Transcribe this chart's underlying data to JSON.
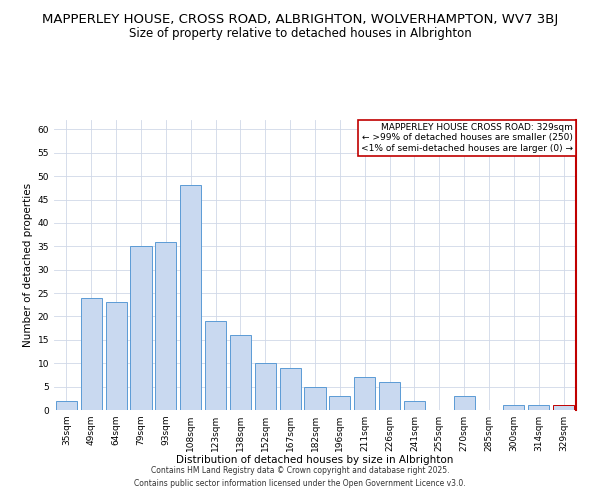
{
  "title_line1": "MAPPERLEY HOUSE, CROSS ROAD, ALBRIGHTON, WOLVERHAMPTON, WV7 3BJ",
  "title_line2": "Size of property relative to detached houses in Albrighton",
  "xlabel": "Distribution of detached houses by size in Albrighton",
  "ylabel": "Number of detached properties",
  "categories": [
    "35sqm",
    "49sqm",
    "64sqm",
    "79sqm",
    "93sqm",
    "108sqm",
    "123sqm",
    "138sqm",
    "152sqm",
    "167sqm",
    "182sqm",
    "196sqm",
    "211sqm",
    "226sqm",
    "241sqm",
    "255sqm",
    "270sqm",
    "285sqm",
    "300sqm",
    "314sqm",
    "329sqm"
  ],
  "values": [
    2,
    24,
    23,
    35,
    36,
    48,
    19,
    16,
    10,
    9,
    5,
    3,
    7,
    6,
    2,
    0,
    3,
    0,
    1,
    1,
    1
  ],
  "bar_color": "#c9d9f0",
  "bar_edge_color": "#5b9bd5",
  "highlight_bar_index": 20,
  "annotation_text": "MAPPERLEY HOUSE CROSS ROAD: 329sqm\n← >99% of detached houses are smaller (250)\n<1% of semi-detached houses are larger (0) →",
  "annotation_box_color": "#ffffff",
  "annotation_box_edge_color": "#c00000",
  "ylim": [
    0,
    62
  ],
  "yticks": [
    0,
    5,
    10,
    15,
    20,
    25,
    30,
    35,
    40,
    45,
    50,
    55,
    60
  ],
  "grid_color": "#d0d8e8",
  "footer_text": "Contains HM Land Registry data © Crown copyright and database right 2025.\nContains public sector information licensed under the Open Government Licence v3.0.",
  "title_fontsize": 9.5,
  "subtitle_fontsize": 8.5,
  "axis_label_fontsize": 7.5,
  "tick_fontsize": 6.5,
  "annotation_fontsize": 6.5,
  "footer_fontsize": 5.5,
  "red_line_color": "#c00000"
}
